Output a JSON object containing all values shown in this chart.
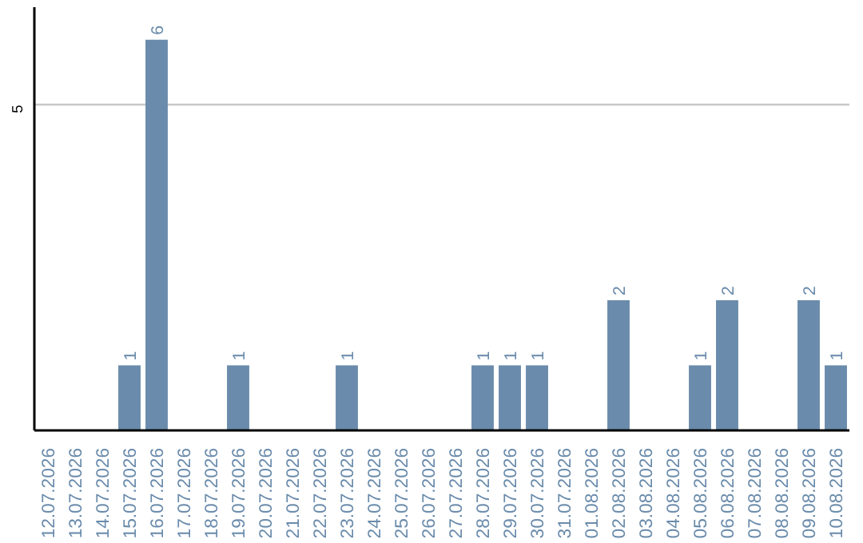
{
  "chart_data": {
    "type": "bar",
    "categories": [
      "12.07.2026",
      "13.07.2026",
      "14.07.2026",
      "15.07.2026",
      "16.07.2026",
      "17.07.2026",
      "18.07.2026",
      "19.07.2026",
      "20.07.2026",
      "21.07.2026",
      "22.07.2026",
      "23.07.2026",
      "24.07.2026",
      "25.07.2026",
      "26.07.2026",
      "27.07.2026",
      "28.07.2026",
      "29.07.2026",
      "30.07.2026",
      "31.07.2026",
      "01.08.2026",
      "02.08.2026",
      "03.08.2026",
      "04.08.2026",
      "05.08.2026",
      "06.08.2026",
      "07.08.2026",
      "08.08.2026",
      "09.08.2026",
      "10.08.2026"
    ],
    "values": [
      0,
      0,
      0,
      1,
      6,
      0,
      0,
      1,
      0,
      0,
      0,
      1,
      0,
      0,
      0,
      0,
      1,
      1,
      1,
      0,
      0,
      2,
      0,
      0,
      1,
      2,
      0,
      0,
      2,
      1
    ],
    "value_labels": [
      null,
      null,
      null,
      "1",
      "6",
      null,
      null,
      "1",
      null,
      null,
      null,
      "1",
      null,
      null,
      null,
      null,
      "1",
      "1",
      "1",
      null,
      null,
      "2",
      null,
      null,
      "1",
      "2",
      null,
      null,
      "2",
      "1"
    ],
    "color": "#6a8bab",
    "ylim": [
      0,
      6.5
    ],
    "yticks": [
      5
    ],
    "grid": "y"
  }
}
